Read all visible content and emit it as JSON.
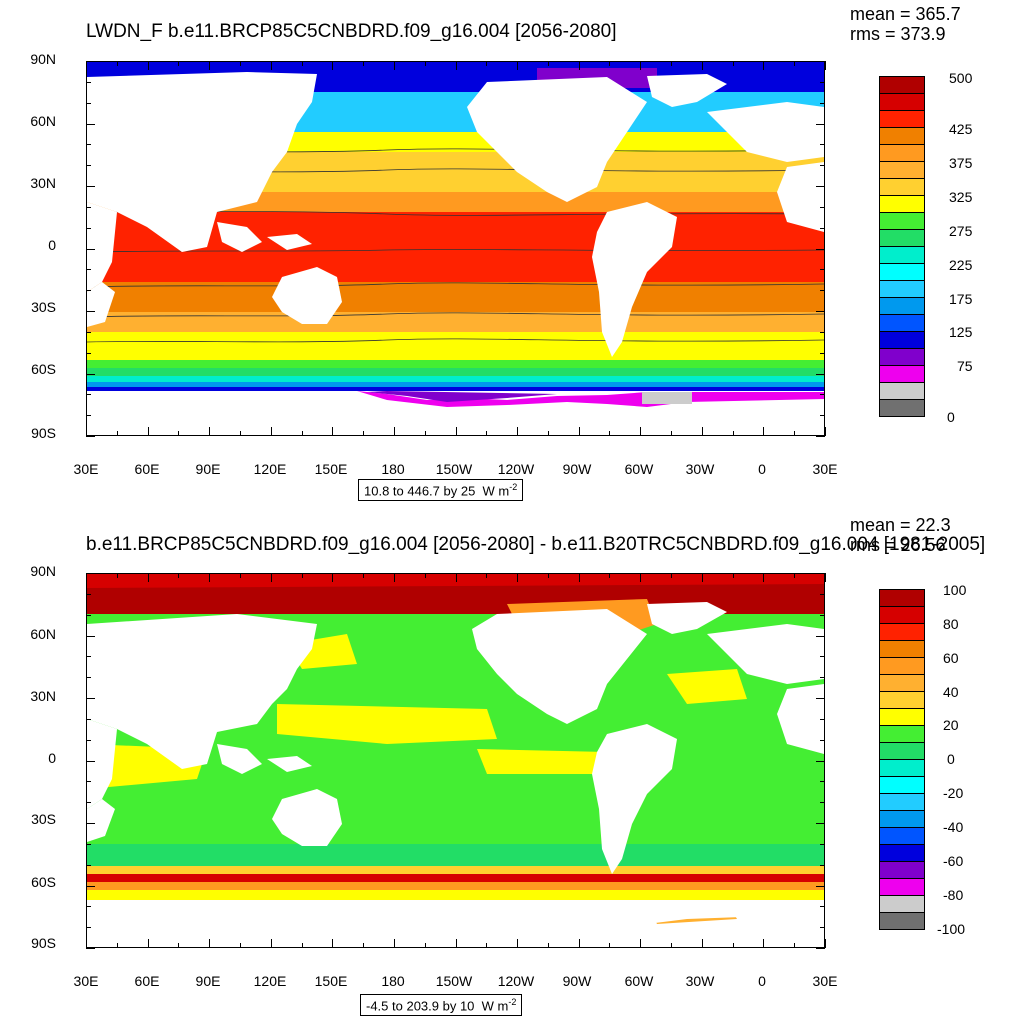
{
  "top": {
    "title": "LWDN_F b.e11.BRCP85C5CNBDRD.f09_g16.004 [2056-2080]",
    "mean": "mean = 365.7",
    "rms": "rms = 373.9",
    "range_text": "10.8 to 446.7 by 25",
    "units": "W m",
    "units_exp": "-2",
    "colorbar_labels": [
      "500",
      "425",
      "375",
      "325",
      "275",
      "225",
      "175",
      "125",
      "75",
      "0"
    ],
    "colorbar_colors": [
      "#B00000",
      "#D60000",
      "#FF2200",
      "#F08000",
      "#FF9A20",
      "#FFB030",
      "#FFD030",
      "#FFFF00",
      "#44EE33",
      "#22DD66",
      "#00EECC",
      "#00FFFF",
      "#22CCFF",
      "#0099EE",
      "#0055FF",
      "#0000DD",
      "#8000CC",
      "#EE00EE",
      "#CCCCCC",
      "#707070"
    ]
  },
  "bottom": {
    "title": "b.e11.BRCP85C5CNBDRD.f09_g16.004 [2056-2080] - b.e11.B20TRC5CNBDRD.f09_g16.004 [1981-2005]",
    "mean": "mean = 22.3",
    "rms": "rms = 26.56",
    "range_text": "-4.5 to 203.9 by 10",
    "units": "W m",
    "units_exp": "-2",
    "colorbar_labels": [
      "100",
      "80",
      "60",
      "40",
      "20",
      "0",
      "-20",
      "-40",
      "-60",
      "-80",
      "-100"
    ],
    "colorbar_colors": [
      "#B00000",
      "#D60000",
      "#FF2200",
      "#F08000",
      "#FF9A20",
      "#FFB030",
      "#FFD030",
      "#FFFF00",
      "#44EE33",
      "#22DD66",
      "#00EECC",
      "#00FFFF",
      "#22CCFF",
      "#0099EE",
      "#0055FF",
      "#0000DD",
      "#8000CC",
      "#EE00EE",
      "#CCCCCC",
      "#707070"
    ]
  },
  "lat_labels": [
    "90N",
    "60N",
    "30N",
    "0",
    "30S",
    "60S",
    "90S"
  ],
  "lon_labels": [
    "30E",
    "60E",
    "90E",
    "120E",
    "150E",
    "180",
    "150W",
    "120W",
    "90W",
    "60W",
    "30W",
    "0",
    "30E"
  ]
}
